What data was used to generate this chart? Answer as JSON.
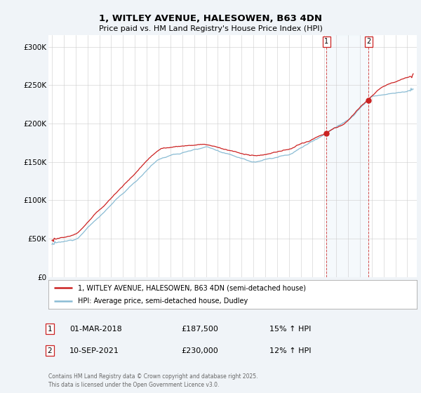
{
  "title_line1": "1, WITLEY AVENUE, HALESOWEN, B63 4DN",
  "title_line2": "Price paid vs. HM Land Registry's House Price Index (HPI)",
  "ylabel_ticks": [
    "£0",
    "£50K",
    "£100K",
    "£150K",
    "£200K",
    "£250K",
    "£300K"
  ],
  "ytick_values": [
    0,
    50000,
    100000,
    150000,
    200000,
    250000,
    300000
  ],
  "ylim": [
    0,
    315000
  ],
  "xlim_start": 1994.7,
  "xlim_end": 2025.8,
  "hpi_color": "#8abcd4",
  "price_color": "#cc2222",
  "shade_color": "#daeaf4",
  "marker1_date": 2018.17,
  "marker1_price": 187500,
  "marker2_date": 2021.72,
  "marker2_price": 230000,
  "legend_label1": "1, WITLEY AVENUE, HALESOWEN, B63 4DN (semi-detached house)",
  "legend_label2": "HPI: Average price, semi-detached house, Dudley",
  "annotation1_date": "01-MAR-2018",
  "annotation1_price": "£187,500",
  "annotation1_pct": "15% ↑ HPI",
  "annotation2_date": "10-SEP-2021",
  "annotation2_price": "£230,000",
  "annotation2_pct": "12% ↑ HPI",
  "footer": "Contains HM Land Registry data © Crown copyright and database right 2025.\nThis data is licensed under the Open Government Licence v3.0.",
  "background_color": "#f0f4f8",
  "plot_bg_color": "#ffffff",
  "grid_color": "#cccccc"
}
